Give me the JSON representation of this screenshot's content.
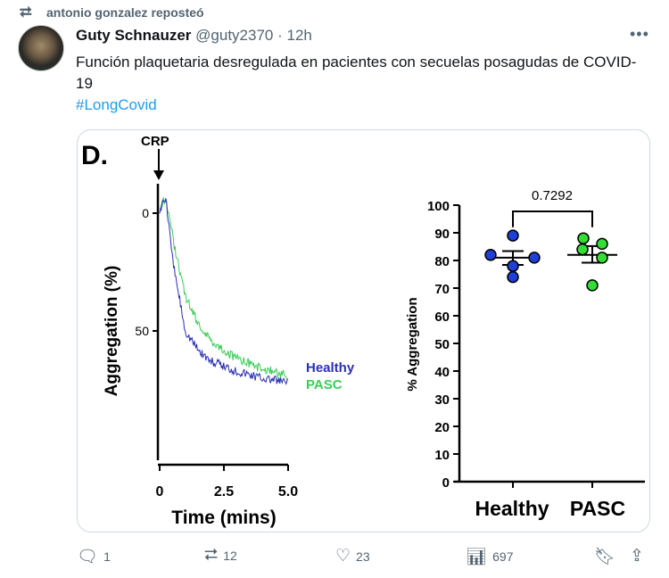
{
  "repost": {
    "label": "antonio gonzalez reposteó",
    "icon": "repost-icon"
  },
  "tweet": {
    "name": "Guty Schnauzer",
    "handle": "@guty2370",
    "separator": "·",
    "time": "12h",
    "text": "Función plaquetaria desregulada en pacientes con secuelas posagudas de COVID-19",
    "hashtag": "#LongCovid"
  },
  "actions": {
    "replies": "1",
    "reposts": "12",
    "likes": "23",
    "views": "697"
  },
  "chart_data": [
    {
      "type": "line",
      "panel_label": "D.",
      "annotation": "CRP",
      "xlabel": "Time (mins)",
      "ylabel": "Aggregation (%)",
      "x_ticks": [
        "0",
        "2.5",
        "5.0"
      ],
      "y_ticks": [
        "0",
        "50"
      ],
      "y_inverted": true,
      "series": [
        {
          "name": "Healthy",
          "color": "#2a2fb5",
          "x": [
            0,
            0.1,
            0.25,
            0.5,
            1,
            1.5,
            2,
            3,
            4,
            5
          ],
          "y": [
            0,
            -5,
            -6,
            20,
            50,
            58,
            63,
            67,
            70,
            72
          ]
        },
        {
          "name": "PASC",
          "color": "#3dcc5a",
          "x": [
            0,
            0.1,
            0.25,
            0.5,
            1,
            1.5,
            2,
            3,
            4,
            5
          ],
          "y": [
            0,
            -5,
            -6,
            10,
            35,
            47,
            54,
            62,
            66,
            69
          ]
        }
      ]
    },
    {
      "type": "scatter",
      "ylabel": "% Aggregation",
      "categories": [
        "Healthy",
        "PASC"
      ],
      "ylim": [
        0,
        100
      ],
      "y_ticks": [
        "0",
        "10",
        "20",
        "30",
        "40",
        "50",
        "60",
        "70",
        "80",
        "90",
        "100"
      ],
      "p_value": "0.7292",
      "series": [
        {
          "name": "Healthy",
          "color": "#1f3fd6",
          "values": [
            89,
            82,
            81,
            78,
            74
          ],
          "mean": 81,
          "sem": [
            78.4,
            83.4
          ]
        },
        {
          "name": "PASC",
          "color": "#33dd33",
          "values": [
            88,
            86,
            84,
            81,
            71
          ],
          "mean": 82,
          "sem": [
            79.2,
            85.2
          ]
        }
      ]
    }
  ]
}
